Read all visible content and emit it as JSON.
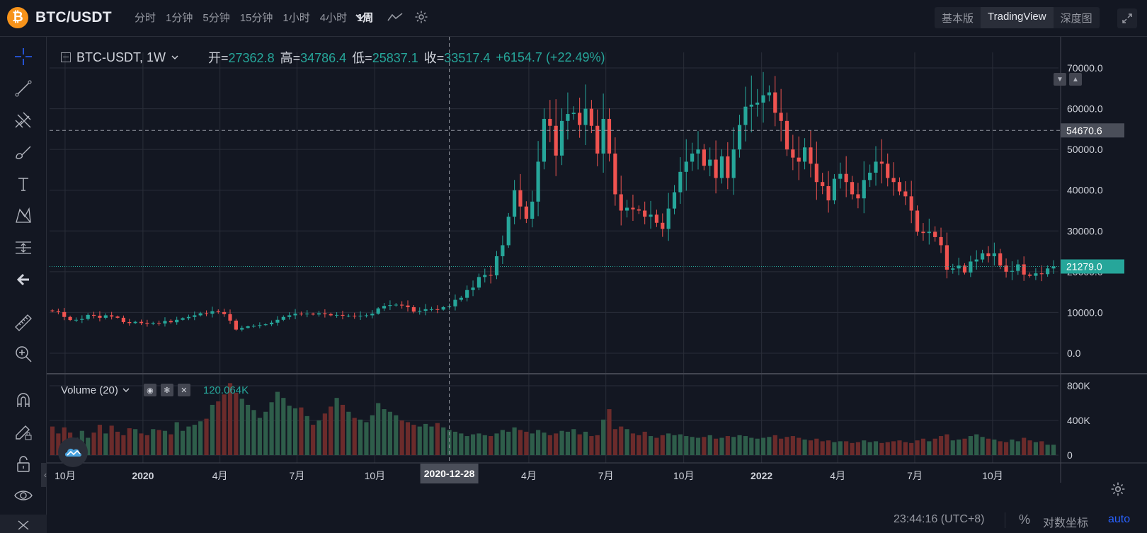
{
  "header": {
    "coin_glyph": "₿",
    "pair": "BTC/USDT",
    "intervals": [
      "分时",
      "1分钟",
      "5分钟",
      "15分钟",
      "1小时",
      "4小时",
      "1周"
    ],
    "active_interval": "1周",
    "view_tabs": [
      "基本版",
      "TradingView",
      "深度图"
    ],
    "active_view": "TradingView"
  },
  "legend": {
    "symbol": "BTC-USDT, 1W",
    "open_label": "开=",
    "open": "27362.8",
    "high_label": "高=",
    "high": "34786.4",
    "low_label": "低=",
    "low": "25837.1",
    "close_label": "收=",
    "close": "33517.4",
    "change": "+6154.7 (+22.49%)"
  },
  "volume_legend": {
    "label": "Volume (20)",
    "value": "120.064K"
  },
  "crosshair": {
    "date_label": "2020-12-28",
    "price_label": "54670.6",
    "price": 54670.6
  },
  "last_price": {
    "label": "21279.0",
    "value": 21279.0
  },
  "bottom": {
    "time": "23:44:16 (UTC+8)",
    "percent": "%",
    "log": "对数坐标",
    "auto": "auto"
  },
  "colors": {
    "up": "#26a69a",
    "down": "#ef5350",
    "volume_up": "#2e5d4a",
    "volume_down": "#6b2b2b",
    "background": "#131722",
    "grid": "#2a2e39"
  },
  "chart_data": {
    "type": "candlestick",
    "interval": "1W",
    "price_axis": {
      "min": 0,
      "max": 70000,
      "ticks": [
        0,
        10000,
        20000,
        30000,
        40000,
        50000,
        60000,
        70000
      ],
      "tick_labels": [
        "0.0",
        "10000.0",
        "20000.0",
        "30000.0",
        "40000.0",
        "50000.0",
        "60000.0",
        "70000.0"
      ]
    },
    "volume_axis": {
      "min": 0,
      "max": 800000,
      "ticks": [
        0,
        400000,
        800000
      ],
      "tick_labels": [
        "0",
        "400K",
        "800K"
      ]
    },
    "time_axis": {
      "start": "2019-09-16",
      "labels": [
        {
          "date": "2019-10-01",
          "text": "10月",
          "bold": false
        },
        {
          "date": "2020-01-01",
          "text": "2020",
          "bold": true
        },
        {
          "date": "2020-04-01",
          "text": "4月",
          "bold": false
        },
        {
          "date": "2020-07-01",
          "text": "7月",
          "bold": false
        },
        {
          "date": "2020-10-01",
          "text": "10月",
          "bold": false
        },
        {
          "date": "2021-04-01",
          "text": "4月",
          "bold": false
        },
        {
          "date": "2021-07-01",
          "text": "7月",
          "bold": false
        },
        {
          "date": "2021-10-01",
          "text": "10月",
          "bold": false
        },
        {
          "date": "2022-01-01",
          "text": "2022",
          "bold": true
        },
        {
          "date": "2022-04-01",
          "text": "4月",
          "bold": false
        },
        {
          "date": "2022-07-01",
          "text": "7月",
          "bold": false
        },
        {
          "date": "2022-10-01",
          "text": "10月",
          "bold": false
        }
      ]
    },
    "weekly_close": [
      10300,
      10100,
      8900,
      8150,
      8200,
      8400,
      9400,
      9200,
      8700,
      9300,
      9000,
      8700,
      7650,
      7400,
      7700,
      7400,
      7200,
      7400,
      7300,
      7900,
      7600,
      8200,
      8600,
      8900,
      9300,
      9800,
      9700,
      10300,
      10100,
      9600,
      8000,
      5800,
      6200,
      6600,
      6700,
      6900,
      7100,
      7500,
      8200,
      8900,
      9300,
      9700,
      9600,
      9700,
      9500,
      9800,
      9600,
      9300,
      9400,
      9200,
      9200,
      9100,
      9200,
      9300,
      9700,
      11000,
      11600,
      11800,
      11900,
      11700,
      11300,
      10200,
      10400,
      10800,
      10800,
      10700,
      11300,
      11500,
      13100,
      13600,
      15500,
      16100,
      18700,
      19200,
      19100,
      23800,
      26500,
      33500,
      40000,
      36000,
      33000,
      37200,
      47000,
      57500,
      55800,
      48500,
      57000,
      58700,
      59000,
      56000,
      60000,
      55800,
      49000,
      57500,
      49000,
      39000,
      35000,
      35700,
      35300,
      35000,
      33500,
      34000,
      32000,
      30500,
      35500,
      39500,
      44500,
      47000,
      49000,
      50000,
      46000,
      47500,
      43000,
      48300,
      43000,
      50000,
      56000,
      60500,
      61000,
      61500,
      63300,
      64000,
      59000,
      57000,
      50000,
      48000,
      47000,
      50500,
      46500,
      42000,
      41000,
      37500,
      42800,
      44000,
      42000,
      39000,
      38000,
      42500,
      44300,
      47000,
      46500,
      43000,
      42000,
      39700,
      38500,
      35000,
      29800,
      29500,
      29800,
      28500,
      26500,
      20500,
      20800,
      21500,
      19800,
      22500,
      23000,
      24500,
      23800,
      24500,
      21500,
      20000,
      20200,
      21800,
      19300,
      19000,
      19600,
      19400,
      20800,
      21279
    ],
    "weekly_volume": [
      330000,
      250000,
      320000,
      260000,
      200000,
      280000,
      200000,
      260000,
      350000,
      250000,
      340000,
      270000,
      230000,
      310000,
      300000,
      250000,
      230000,
      300000,
      290000,
      280000,
      240000,
      380000,
      280000,
      330000,
      350000,
      390000,
      420000,
      580000,
      620000,
      700000,
      830000,
      720000,
      650000,
      580000,
      520000,
      430000,
      500000,
      610000,
      730000,
      660000,
      570000,
      540000,
      550000,
      450000,
      350000,
      400000,
      480000,
      560000,
      660000,
      580000,
      500000,
      430000,
      410000,
      380000,
      460000,
      600000,
      530000,
      500000,
      460000,
      400000,
      380000,
      350000,
      330000,
      360000,
      330000,
      370000,
      320000,
      290000,
      270000,
      250000,
      220000,
      240000,
      250000,
      230000,
      220000,
      250000,
      290000,
      270000,
      320000,
      290000,
      270000,
      250000,
      290000,
      260000,
      230000,
      250000,
      280000,
      270000,
      300000,
      240000,
      270000,
      220000,
      230000,
      410000,
      530000,
      300000,
      330000,
      300000,
      250000,
      230000,
      270000,
      220000,
      200000,
      230000,
      250000,
      230000,
      240000,
      220000,
      210000,
      200000,
      210000,
      230000,
      190000,
      200000,
      220000,
      210000,
      230000,
      220000,
      200000,
      190000,
      200000,
      210000,
      230000,
      190000,
      210000,
      220000,
      200000,
      180000,
      170000,
      190000,
      160000,
      170000,
      150000,
      160000,
      160000,
      140000,
      150000,
      170000,
      150000,
      160000,
      140000,
      150000,
      160000,
      170000,
      150000,
      140000,
      170000,
      190000,
      160000,
      190000,
      220000,
      240000,
      170000,
      180000,
      190000,
      220000,
      240000,
      210000,
      190000,
      180000,
      160000,
      150000,
      180000,
      160000,
      200000,
      170000,
      150000,
      160000,
      120000,
      120064
    ]
  }
}
